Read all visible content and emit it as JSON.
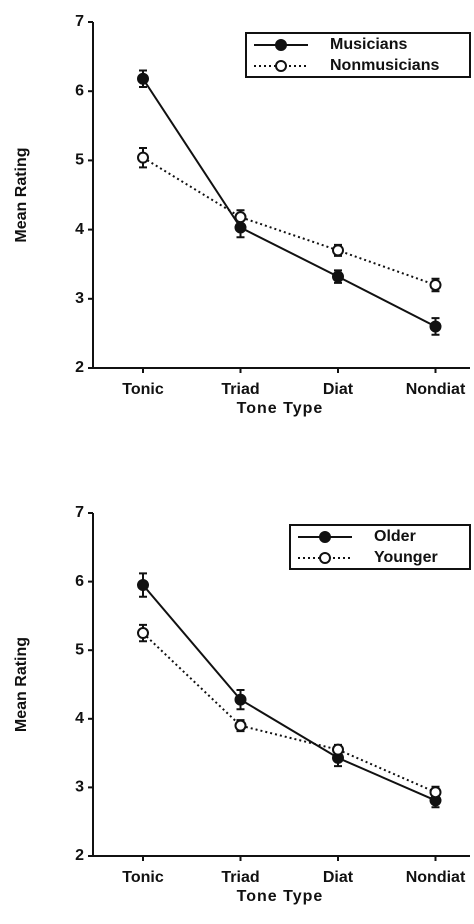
{
  "chart_data": [
    {
      "type": "line",
      "categories": [
        "Tonic",
        "Triad",
        "Diat",
        "Nondiat"
      ],
      "xlabel": "Tone Type",
      "ylabel": "Mean Rating",
      "ylim": [
        2,
        7
      ],
      "yticks": [
        2,
        3,
        4,
        5,
        6,
        7
      ],
      "legend": "upper right",
      "series": [
        {
          "name": "Musicians",
          "color": "#111111",
          "line_style": "solid",
          "marker_fill": "filled",
          "values": [
            6.18,
            4.03,
            3.32,
            2.6
          ],
          "errors": [
            0.12,
            0.14,
            0.09,
            0.12
          ]
        },
        {
          "name": "Nonmusicians",
          "color": "#111111",
          "line_style": "dotted",
          "marker_fill": "open",
          "values": [
            5.04,
            4.18,
            3.7,
            3.2
          ],
          "errors": [
            0.14,
            0.1,
            0.08,
            0.09
          ]
        }
      ]
    },
    {
      "type": "line",
      "categories": [
        "Tonic",
        "Triad",
        "Diat",
        "Nondiat"
      ],
      "xlabel": "Tone Type",
      "ylabel": "Mean Rating",
      "ylim": [
        2,
        7
      ],
      "yticks": [
        2,
        3,
        4,
        5,
        6,
        7
      ],
      "legend": "upper right",
      "series": [
        {
          "name": "Older",
          "color": "#111111",
          "line_style": "solid",
          "marker_fill": "filled",
          "values": [
            5.95,
            4.28,
            3.43,
            2.81
          ],
          "errors": [
            0.17,
            0.14,
            0.12,
            0.1
          ]
        },
        {
          "name": "Younger",
          "color": "#111111",
          "line_style": "dotted",
          "marker_fill": "open",
          "values": [
            5.25,
            3.9,
            3.55,
            2.93
          ],
          "errors": [
            0.12,
            0.08,
            0.07,
            0.08
          ]
        }
      ]
    }
  ]
}
